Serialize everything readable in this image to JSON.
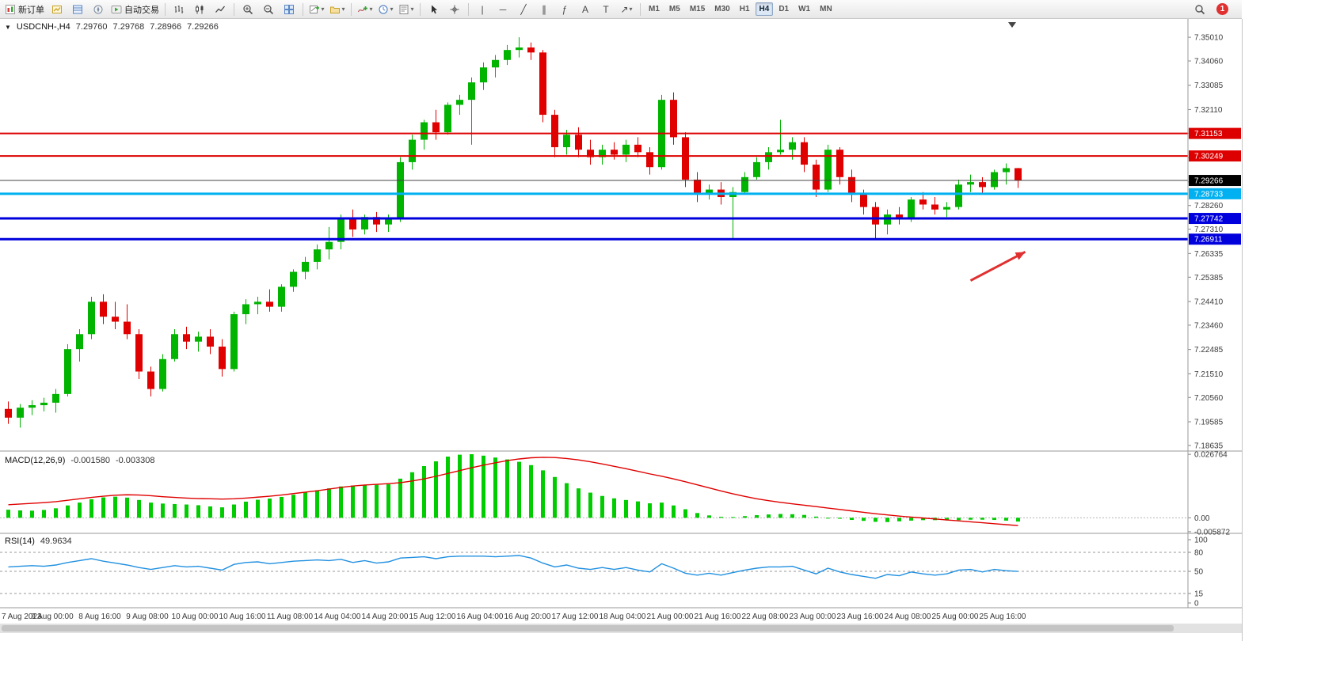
{
  "toolbar": {
    "new_order": "新订单",
    "auto_trading": "自动交易",
    "timeframes": [
      "M1",
      "M5",
      "M15",
      "M30",
      "H1",
      "H4",
      "D1",
      "W1",
      "MN"
    ],
    "active_timeframe": "H4",
    "notification_badge": "1"
  },
  "icons": {
    "one_click_toggle": "▼",
    "dropdown_arrow": "▾",
    "vertical_line": "|",
    "horizontal_line": "─",
    "trendline": "╱",
    "channel": "∥",
    "fibonacci": "ƒ",
    "text": "A",
    "label": "T",
    "arrows": "↗"
  },
  "chart_header": {
    "symbol": "USDCNH-,H4",
    "open": "7.29760",
    "high": "7.29768",
    "low": "7.28966",
    "close": "7.29266"
  },
  "indicator_labels": {
    "macd": {
      "name": "MACD(12,26,9)",
      "main_value": "-0.001580",
      "signal_value": "-0.003308"
    },
    "rsi": {
      "name": "RSI(14)",
      "value": "49.9634"
    }
  },
  "chart_data": [
    {
      "type": "candlestick",
      "symbol": "USDCNH-",
      "timeframe": "H4",
      "ylim": [
        7.1841,
        7.3568
      ],
      "y_ticks": [
        7.3501,
        7.3406,
        7.33085,
        7.3211,
        7.3116,
        7.30185,
        7.2921,
        7.2826,
        7.2731,
        7.26335,
        7.25385,
        7.2441,
        7.2346,
        7.22485,
        7.2151,
        7.2056,
        7.19585,
        7.18635
      ],
      "ohlc": [
        [
          7.201,
          7.204,
          7.195,
          7.1975
        ],
        [
          7.1975,
          7.203,
          7.1935,
          7.2015
        ],
        [
          7.2015,
          7.2045,
          7.1985,
          7.2025
        ],
        [
          7.2025,
          7.2055,
          7.2,
          7.2035
        ],
        [
          7.2035,
          7.209,
          7.1995,
          7.207
        ],
        [
          7.207,
          7.227,
          7.206,
          7.225
        ],
        [
          7.225,
          7.233,
          7.22,
          7.231
        ],
        [
          7.231,
          7.246,
          7.229,
          7.244
        ],
        [
          7.244,
          7.247,
          7.235,
          7.238
        ],
        [
          7.238,
          7.244,
          7.233,
          7.236
        ],
        [
          7.236,
          7.243,
          7.229,
          7.231
        ],
        [
          7.231,
          7.233,
          7.213,
          7.216
        ],
        [
          7.216,
          7.218,
          7.206,
          7.209
        ],
        [
          7.209,
          7.223,
          7.208,
          7.221
        ],
        [
          7.221,
          7.233,
          7.22,
          7.231
        ],
        [
          7.231,
          7.234,
          7.225,
          7.228
        ],
        [
          7.228,
          7.232,
          7.224,
          7.23
        ],
        [
          7.23,
          7.233,
          7.223,
          7.226
        ],
        [
          7.226,
          7.229,
          7.214,
          7.217
        ],
        [
          7.217,
          7.24,
          7.216,
          7.239
        ],
        [
          7.239,
          7.245,
          7.235,
          7.243
        ],
        [
          7.243,
          7.246,
          7.239,
          7.244
        ],
        [
          7.244,
          7.249,
          7.24,
          7.242
        ],
        [
          7.242,
          7.251,
          7.24,
          7.25
        ],
        [
          7.25,
          7.257,
          7.248,
          7.256
        ],
        [
          7.256,
          7.262,
          7.253,
          7.26
        ],
        [
          7.26,
          7.267,
          7.257,
          7.265
        ],
        [
          7.265,
          7.274,
          7.261,
          7.268
        ],
        [
          7.268,
          7.279,
          7.265,
          7.277
        ],
        [
          7.277,
          7.281,
          7.27,
          7.273
        ],
        [
          7.273,
          7.279,
          7.271,
          7.278
        ],
        [
          7.278,
          7.28,
          7.272,
          7.275
        ],
        [
          7.275,
          7.279,
          7.272,
          7.277
        ],
        [
          7.277,
          7.302,
          7.276,
          7.3
        ],
        [
          7.3,
          7.311,
          7.297,
          7.309
        ],
        [
          7.309,
          7.317,
          7.305,
          7.316
        ],
        [
          7.316,
          7.321,
          7.309,
          7.312
        ],
        [
          7.312,
          7.324,
          7.311,
          7.323
        ],
        [
          7.323,
          7.327,
          7.319,
          7.325
        ],
        [
          7.325,
          7.334,
          7.307,
          7.332
        ],
        [
          7.332,
          7.34,
          7.329,
          7.338
        ],
        [
          7.338,
          7.343,
          7.334,
          7.341
        ],
        [
          7.341,
          7.347,
          7.339,
          7.345
        ],
        [
          7.345,
          7.3501,
          7.342,
          7.346
        ],
        [
          7.346,
          7.348,
          7.341,
          7.344
        ],
        [
          7.344,
          7.345,
          7.316,
          7.319
        ],
        [
          7.319,
          7.321,
          7.302,
          7.306
        ],
        [
          7.306,
          7.313,
          7.303,
          7.311
        ],
        [
          7.311,
          7.314,
          7.302,
          7.305
        ],
        [
          7.305,
          7.309,
          7.299,
          7.302
        ],
        [
          7.302,
          7.307,
          7.299,
          7.305
        ],
        [
          7.305,
          7.308,
          7.301,
          7.303
        ],
        [
          7.303,
          7.309,
          7.3,
          7.307
        ],
        [
          7.307,
          7.31,
          7.302,
          7.304
        ],
        [
          7.304,
          7.306,
          7.295,
          7.298
        ],
        [
          7.298,
          7.327,
          7.297,
          7.325
        ],
        [
          7.325,
          7.328,
          7.307,
          7.31
        ],
        [
          7.31,
          7.312,
          7.29,
          7.293
        ],
        [
          7.293,
          7.296,
          7.284,
          7.287
        ],
        [
          7.287,
          7.291,
          7.285,
          7.289
        ],
        [
          7.289,
          7.292,
          7.283,
          7.286
        ],
        [
          7.286,
          7.29,
          7.269,
          7.288
        ],
        [
          7.288,
          7.296,
          7.287,
          7.294
        ],
        [
          7.294,
          7.302,
          7.293,
          7.3
        ],
        [
          7.3,
          7.306,
          7.297,
          7.304
        ],
        [
          7.304,
          7.317,
          7.303,
          7.305
        ],
        [
          7.305,
          7.31,
          7.301,
          7.308
        ],
        [
          7.308,
          7.31,
          7.296,
          7.299
        ],
        [
          7.299,
          7.301,
          7.286,
          7.289
        ],
        [
          7.289,
          7.307,
          7.288,
          7.305
        ],
        [
          7.305,
          7.306,
          7.291,
          7.294
        ],
        [
          7.294,
          7.297,
          7.284,
          7.287
        ],
        [
          7.287,
          7.289,
          7.279,
          7.282
        ],
        [
          7.282,
          7.284,
          7.269,
          7.275
        ],
        [
          7.275,
          7.281,
          7.271,
          7.279
        ],
        [
          7.279,
          7.282,
          7.275,
          7.277
        ],
        [
          7.277,
          7.286,
          7.276,
          7.285
        ],
        [
          7.285,
          7.288,
          7.281,
          7.283
        ],
        [
          7.283,
          7.286,
          7.279,
          7.281
        ],
        [
          7.281,
          7.284,
          7.278,
          7.282
        ],
        [
          7.282,
          7.293,
          7.281,
          7.291
        ],
        [
          7.291,
          7.295,
          7.288,
          7.292
        ],
        [
          7.292,
          7.294,
          7.287,
          7.29
        ],
        [
          7.29,
          7.297,
          7.289,
          7.296
        ],
        [
          7.296,
          7.2995,
          7.291,
          7.2976
        ],
        [
          7.2976,
          7.29768,
          7.28966,
          7.29266
        ]
      ],
      "x_labels": [
        {
          "bar": 0,
          "text": "7 Aug 2023"
        },
        {
          "bar": 4,
          "text": "8 Aug 00:00"
        },
        {
          "bar": 8,
          "text": "8 Aug 16:00"
        },
        {
          "bar": 12,
          "text": "9 Aug 08:00"
        },
        {
          "bar": 16,
          "text": "10 Aug 00:00"
        },
        {
          "bar": 20,
          "text": "10 Aug 16:00"
        },
        {
          "bar": 24,
          "text": "11 Aug 08:00"
        },
        {
          "bar": 28,
          "text": "14 Aug 04:00"
        },
        {
          "bar": 32,
          "text": "14 Aug 20:00"
        },
        {
          "bar": 36,
          "text": "15 Aug 12:00"
        },
        {
          "bar": 40,
          "text": "16 Aug 04:00"
        },
        {
          "bar": 44,
          "text": "16 Aug 20:00"
        },
        {
          "bar": 48,
          "text": "17 Aug 12:00"
        },
        {
          "bar": 52,
          "text": "18 Aug 04:00"
        },
        {
          "bar": 56,
          "text": "21 Aug 00:00"
        },
        {
          "bar": 60,
          "text": "21 Aug 16:00"
        },
        {
          "bar": 64,
          "text": "22 Aug 08:00"
        },
        {
          "bar": 68,
          "text": "23 Aug 00:00"
        },
        {
          "bar": 72,
          "text": "23 Aug 16:00"
        },
        {
          "bar": 76,
          "text": "24 Aug 08:00"
        },
        {
          "bar": 80,
          "text": "25 Aug 00:00"
        },
        {
          "bar": 84,
          "text": "25 Aug 16:00"
        }
      ],
      "h_lines": [
        {
          "price": 7.31153,
          "color": "#dd0000",
          "width": 2,
          "label": "7.31153"
        },
        {
          "price": 7.30249,
          "color": "#dd0000",
          "width": 2,
          "label": "7.30249"
        },
        {
          "price": 7.28733,
          "color": "#00b0f0",
          "width": 3,
          "label": "7.28733"
        },
        {
          "price": 7.27742,
          "color": "#0000dd",
          "width": 3,
          "label": "7.27742"
        },
        {
          "price": 7.26911,
          "color": "#0000dd",
          "width": 3,
          "label": "7.26911"
        }
      ],
      "current_price": {
        "value": 7.29266,
        "label": "7.29266",
        "line_color": "#444444",
        "badge_bg": "#000000"
      },
      "colors": {
        "up": "#00b400",
        "down": "#e00000",
        "background": "#ffffff",
        "axis_text": "#3a3a3a"
      },
      "annotations": [
        {
          "type": "arrow",
          "from": {
            "bar": 81,
            "price": 7.2525
          },
          "to": {
            "bar": 85.6,
            "price": 7.264
          },
          "color": "#e03030"
        }
      ]
    },
    {
      "type": "macd",
      "title": "MACD(12,26,9)",
      "ylim": [
        -0.0059,
        0.0268
      ],
      "y_ticks": [
        {
          "v": 0.026764,
          "text": "0.026764"
        },
        {
          "v": 0,
          "text": "0.00"
        },
        {
          "v": -0.005872,
          "text": "-0.005872"
        }
      ],
      "histogram": [
        0.0034,
        0.0031,
        0.003,
        0.0033,
        0.004,
        0.0052,
        0.0064,
        0.0078,
        0.0086,
        0.0089,
        0.0085,
        0.0075,
        0.0064,
        0.006,
        0.0058,
        0.0056,
        0.0053,
        0.0048,
        0.0044,
        0.0056,
        0.0068,
        0.0076,
        0.0081,
        0.0088,
        0.0097,
        0.0107,
        0.0116,
        0.0124,
        0.0132,
        0.0136,
        0.0138,
        0.0139,
        0.0141,
        0.0165,
        0.0192,
        0.0218,
        0.0238,
        0.0258,
        0.0266,
        0.0268,
        0.0262,
        0.0254,
        0.0246,
        0.0236,
        0.0222,
        0.02,
        0.0172,
        0.0146,
        0.0124,
        0.0106,
        0.0092,
        0.0082,
        0.0075,
        0.0069,
        0.0061,
        0.0064,
        0.0052,
        0.0036,
        0.002,
        0.001,
        0.0004,
        0.0003,
        0.0007,
        0.0011,
        0.0014,
        0.0016,
        0.0015,
        0.0012,
        0.0005,
        0.0,
        -0.0004,
        -0.0009,
        -0.0013,
        -0.0017,
        -0.0018,
        -0.0015,
        -0.0012,
        -0.001,
        -0.001,
        -0.0011,
        -0.001,
        -0.0008,
        -0.0008,
        -0.0009,
        -0.0012,
        -0.00158
      ],
      "signal": [
        0.0055,
        0.0058,
        0.0061,
        0.0064,
        0.0068,
        0.0074,
        0.008,
        0.0086,
        0.0091,
        0.0095,
        0.0097,
        0.0096,
        0.0093,
        0.0089,
        0.0086,
        0.0083,
        0.0081,
        0.008,
        0.0079,
        0.008,
        0.0083,
        0.0087,
        0.0091,
        0.0096,
        0.0102,
        0.0108,
        0.0114,
        0.0121,
        0.0128,
        0.0134,
        0.0138,
        0.0141,
        0.0144,
        0.0148,
        0.0155,
        0.0164,
        0.0175,
        0.0187,
        0.0199,
        0.0211,
        0.0222,
        0.0232,
        0.0241,
        0.0248,
        0.0253,
        0.0255,
        0.0254,
        0.025,
        0.0244,
        0.0236,
        0.0227,
        0.0217,
        0.0207,
        0.0196,
        0.0185,
        0.0175,
        0.0164,
        0.0152,
        0.0139,
        0.0126,
        0.0113,
        0.0101,
        0.009,
        0.008,
        0.0072,
        0.0065,
        0.0059,
        0.0053,
        0.0047,
        0.0041,
        0.0035,
        0.0029,
        0.0023,
        0.0017,
        0.0012,
        0.0007,
        0.0003,
        -0.0001,
        -0.0005,
        -0.0009,
        -0.0013,
        -0.0017,
        -0.0021,
        -0.0025,
        -0.0029,
        -0.0033
      ],
      "colors": {
        "histogram": "#00cc00",
        "signal": "#e00000"
      }
    },
    {
      "type": "line",
      "title": "RSI(14)",
      "ylim": [
        0,
        100
      ],
      "y_ticks": [
        {
          "v": 100,
          "text": "100"
        },
        {
          "v": 80,
          "text": "80"
        },
        {
          "v": 50,
          "text": "50"
        },
        {
          "v": 15,
          "text": "15"
        },
        {
          "v": 0,
          "text": "0"
        }
      ],
      "levels": [
        80,
        50,
        15
      ],
      "values": [
        57,
        58,
        59,
        58,
        60,
        64,
        67,
        70,
        66,
        63,
        60,
        56,
        53,
        56,
        59,
        57,
        58,
        55,
        52,
        61,
        64,
        65,
        62,
        64,
        66,
        67,
        68,
        67,
        69,
        64,
        67,
        63,
        65,
        71,
        72,
        73,
        70,
        73,
        74,
        74,
        74,
        73,
        74,
        75,
        71,
        63,
        57,
        60,
        55,
        53,
        56,
        53,
        56,
        52,
        49,
        62,
        55,
        47,
        44,
        47,
        44,
        48,
        52,
        55,
        57,
        57,
        58,
        52,
        46,
        55,
        49,
        45,
        42,
        39,
        45,
        43,
        49,
        46,
        44,
        46,
        52,
        53,
        49,
        53,
        51,
        49.9634
      ],
      "color": "#2090e0"
    }
  ]
}
